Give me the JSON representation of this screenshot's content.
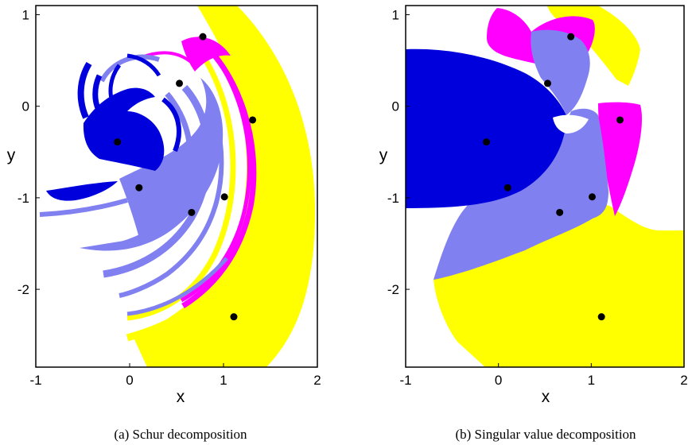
{
  "chart_data": [
    {
      "type": "scatter",
      "caption": "(a) Schur decomposition",
      "xlabel": "x",
      "ylabel": "y",
      "xlim": [
        -1,
        2
      ],
      "ylim": [
        -2.85,
        1.1
      ],
      "xticks": [
        "-1",
        "0",
        "1",
        "2"
      ],
      "yticks": [
        "1",
        "0",
        "-1",
        "-2"
      ],
      "region_colors": [
        "#0000dd",
        "#8080f0",
        "#ff00ff",
        "#ffff00"
      ],
      "points": [
        {
          "x": 0.78,
          "y": 0.76
        },
        {
          "x": 0.53,
          "y": 0.25
        },
        {
          "x": 1.31,
          "y": -0.15
        },
        {
          "x": -0.13,
          "y": -0.39
        },
        {
          "x": 0.1,
          "y": -0.89
        },
        {
          "x": 1.01,
          "y": -0.99
        },
        {
          "x": 0.66,
          "y": -1.16
        },
        {
          "x": 1.11,
          "y": -2.3
        }
      ]
    },
    {
      "type": "scatter",
      "caption": "(b) Singular value decomposition",
      "xlabel": "x",
      "ylabel": "y",
      "xlim": [
        -1,
        2
      ],
      "ylim": [
        -2.85,
        1.1
      ],
      "xticks": [
        "-1",
        "0",
        "1",
        "2"
      ],
      "yticks": [
        "1",
        "0",
        "-1",
        "-2"
      ],
      "region_colors": [
        "#0000dd",
        "#8080f0",
        "#ff00ff",
        "#ffff00"
      ],
      "points": [
        {
          "x": 0.78,
          "y": 0.76
        },
        {
          "x": 0.53,
          "y": 0.25
        },
        {
          "x": 1.31,
          "y": -0.15
        },
        {
          "x": -0.13,
          "y": -0.39
        },
        {
          "x": 0.1,
          "y": -0.89
        },
        {
          "x": 1.01,
          "y": -0.99
        },
        {
          "x": 0.66,
          "y": -1.16
        },
        {
          "x": 1.11,
          "y": -2.3
        }
      ]
    }
  ]
}
